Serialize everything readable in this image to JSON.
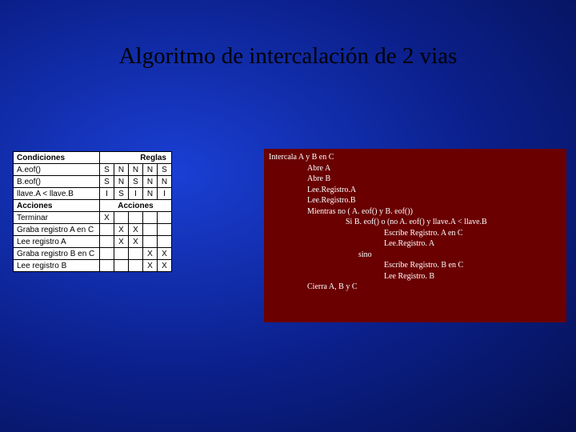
{
  "title": "Algoritmo de intercalación de 2 vias",
  "table": {
    "hdr1_left": "Condiciones",
    "hdr1_right": "Reglas",
    "cond_rows": [
      {
        "label": "A.eof()",
        "cells": [
          "S",
          "N",
          "N",
          "N",
          "S"
        ]
      },
      {
        "label": "B.eof()",
        "cells": [
          "S",
          "N",
          "S",
          "N",
          "N"
        ]
      },
      {
        "label": "llave.A < llave.B",
        "cells": [
          "I",
          "S",
          "I",
          "N",
          "I"
        ]
      }
    ],
    "hdr2_left": "Acciones",
    "hdr2_right": "Acciones",
    "act_rows": [
      {
        "label": "Terminar",
        "cells": [
          "X",
          "",
          "",
          "",
          ""
        ]
      },
      {
        "label": "Graba registro A en C",
        "cells": [
          "",
          "X",
          "X",
          "",
          ""
        ]
      },
      {
        "label": "Lee registro A",
        "cells": [
          "",
          "X",
          "X",
          "",
          ""
        ]
      },
      {
        "label": "Graba registro B en C",
        "cells": [
          "",
          "",
          "",
          "X",
          "X"
        ]
      },
      {
        "label": "Lee registro B",
        "cells": [
          "",
          "",
          "",
          "X",
          "X"
        ]
      }
    ]
  },
  "code": {
    "l01": "Intercala A y B en C",
    "l02": "Abre A",
    "l03": "Abre B",
    "l04": "Lee.Registro.A",
    "l05": "Lee.Registro.B",
    "l06": "Mientras no ( A. eof() y  B. eof())",
    "l07": "Si B. eof() o (no A. eof() y llave.A < llave.B",
    "l08": "Escribe Registro. A en C",
    "l09": "Lee.Registro. A",
    "l10": "sino",
    "l11": "Escribe Registro. B en C",
    "l12": "Lee Registro. B",
    "l13": "Cierra A, B y C"
  }
}
